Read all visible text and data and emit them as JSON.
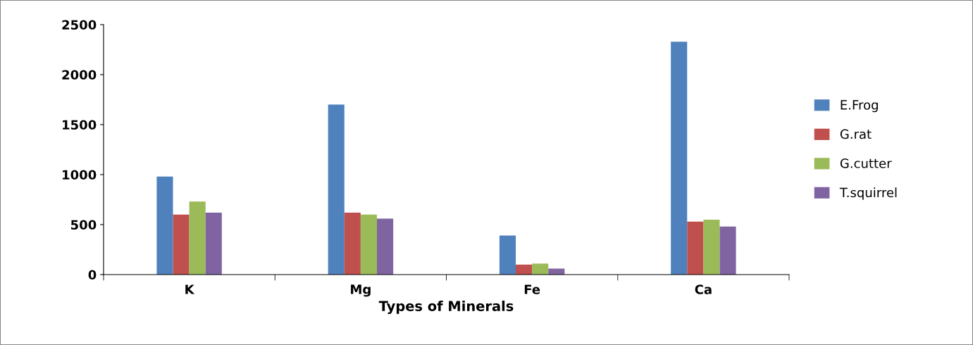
{
  "chart_data": {
    "type": "bar",
    "xlabel": "Types of Minerals",
    "categories": [
      "K",
      "Mg",
      "Fe",
      "Ca"
    ],
    "series": [
      {
        "name": "E.Frog",
        "color": "#4f81bd",
        "values": [
          980,
          1700,
          390,
          2330
        ]
      },
      {
        "name": "G.rat",
        "color": "#c0504d",
        "values": [
          600,
          620,
          100,
          530
        ]
      },
      {
        "name": "G.cutter",
        "color": "#9bbb59",
        "values": [
          730,
          600,
          110,
          550
        ]
      },
      {
        "name": "T.squirrel",
        "color": "#8064a2",
        "values": [
          620,
          560,
          60,
          480
        ]
      }
    ],
    "ylim": [
      0,
      2500
    ],
    "yticks": [
      0,
      500,
      1000,
      1500,
      2000,
      2500
    ],
    "grid": false,
    "legend": "right"
  }
}
